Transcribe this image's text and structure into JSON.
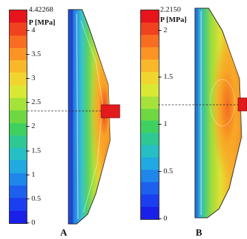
{
  "panels": [
    {
      "id": "A",
      "letter": "A",
      "max_value_label": "4.42268",
      "unit_label": "P [MPa]",
      "ticks": [
        "4",
        "3.5",
        "3",
        "2.5",
        "2",
        "1.5",
        "1",
        "0.5",
        "0"
      ],
      "tick_values": [
        4,
        3.5,
        3,
        2.5,
        2,
        1.5,
        1,
        0.5,
        0
      ],
      "max_value": 4.42268
    },
    {
      "id": "B",
      "letter": "B",
      "max_value_label": "2.2150",
      "unit_label": "P [MPa]",
      "ticks": [
        "2",
        "1.5",
        "1",
        "0.5",
        "0"
      ],
      "tick_values": [
        2,
        1.5,
        1,
        0.5,
        0
      ],
      "max_value": 2.215
    }
  ],
  "colorbar_colors": [
    "#e8141c",
    "#f0421e",
    "#f86d22",
    "#fb9424",
    "#f9b82a",
    "#f1d52f",
    "#d9e832",
    "#a6e33a",
    "#6ed842",
    "#3fd160",
    "#2ec893",
    "#25bfc4",
    "#21a9e1",
    "#1f86ea",
    "#1d60ee",
    "#1b3ff0",
    "#1a20e8"
  ]
}
